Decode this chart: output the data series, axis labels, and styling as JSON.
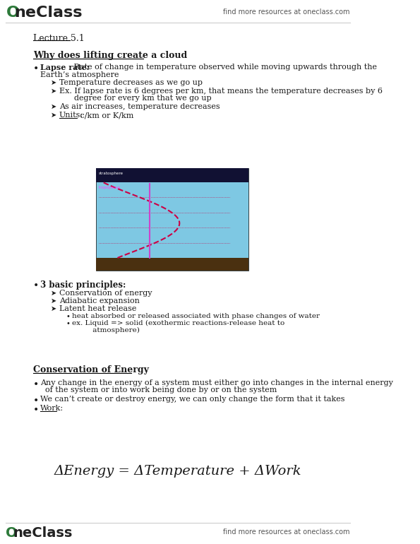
{
  "bg_color": "#ffffff",
  "header_logo_text": "OneClass",
  "header_right_text": "find more resources at oneclass.com",
  "footer_logo_text": "OneClass",
  "footer_right_text": "find more resources at oneclass.com",
  "lecture_title": "Lecture 5.1",
  "section1_title": "Why does lifting create a cloud",
  "bullet1_bold": "Lapse rate:",
  "bullet1_rest": " Rate of change in temperature observed while moving upwards through the",
  "bullet1_line2": "Earth’s atmosphere",
  "sub_bullets1": [
    "Temperature decreases as we go up",
    "Ex. If lapse rate is 6 degrees per km, that means the temperature decreases by 6",
    "As air increases, temperature decreases",
    "Units: c/km or K/km"
  ],
  "sub_bullet1_cont": "      degree for every km that we go up",
  "bullet2_bold": "3 basic principles:",
  "sub_bullets2": [
    "Conservation of energy",
    "Adiabatic expansion",
    "Latent heat release"
  ],
  "sub_sub_bullets2": [
    "heat absorbed or released associated with phase changes of water",
    "ex. Liquid => solid (exothermic reactions-release heat to"
  ],
  "sub_sub_bullet2_cont": "         atmosphere)",
  "section2_title": "Conservation of Energy",
  "section2_bullets": [
    "Any change in the energy of a system must either go into changes in the internal energy",
    "  of the system or into work being done by or on the system",
    "We can’t create or destroy energy, we can only change the form that it takes",
    "Work:"
  ],
  "equation": "ΔEnergy = ΔTemperature + ΔWork",
  "logo_color": "#2d7a3a",
  "text_color": "#1a1a1a",
  "header_line_color": "#cccccc",
  "footer_line_color": "#cccccc"
}
